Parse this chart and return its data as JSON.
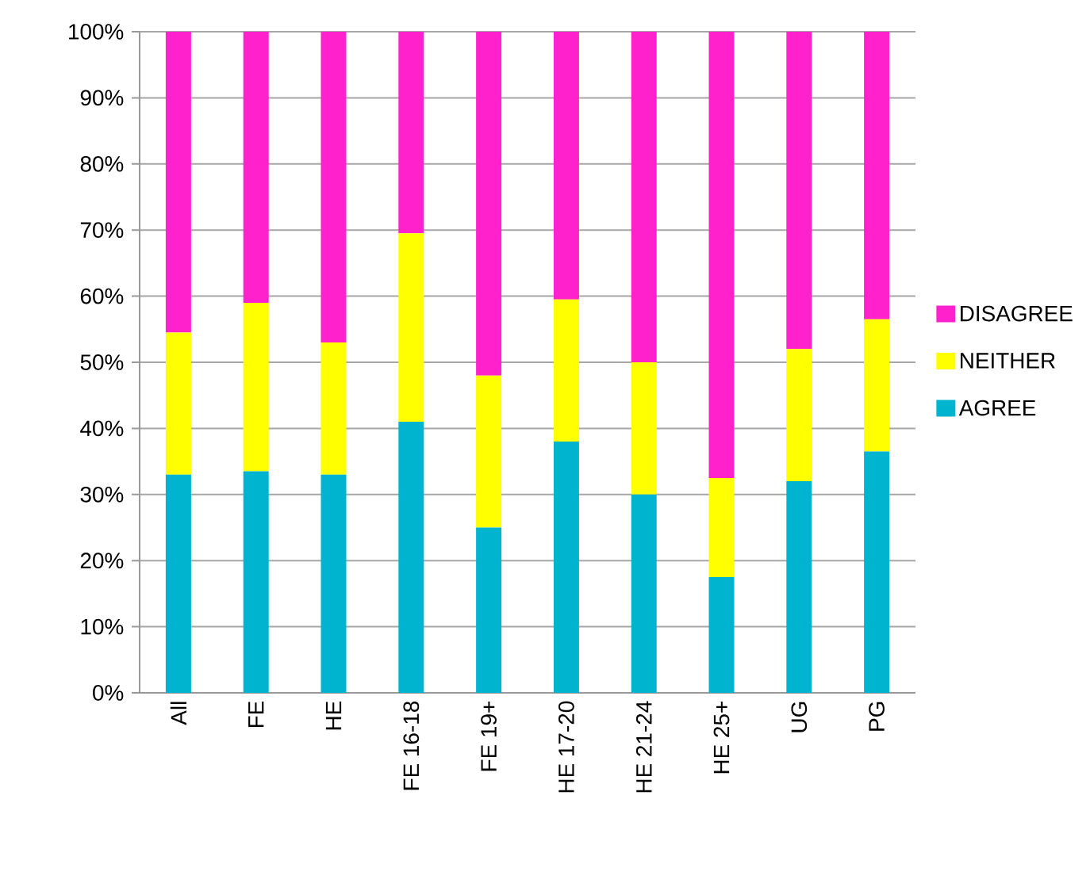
{
  "chart_data": {
    "type": "bar",
    "stacked": true,
    "categories": [
      "All",
      "FE",
      "HE",
      "FE 16-18",
      "FE 19+",
      "HE 17-20",
      "HE 21-24",
      "HE 25+",
      "UG",
      "PG"
    ],
    "series": [
      {
        "name": "AGREE",
        "color": "#00b4d0",
        "values": [
          33,
          33.5,
          33,
          41,
          25,
          38,
          30,
          17.5,
          32,
          36.5
        ]
      },
      {
        "name": "NEITHER",
        "color": "#ffff00",
        "values": [
          21.5,
          25.5,
          20,
          28.5,
          23,
          21.5,
          20,
          15,
          20,
          20
        ]
      },
      {
        "name": "DISAGREE",
        "color": "#ff22cc",
        "values": [
          45.5,
          41,
          47,
          30.5,
          52,
          40.5,
          50,
          67.5,
          48,
          43.5
        ]
      }
    ],
    "ylim": [
      0,
      100
    ],
    "yticks": [
      {
        "value": 0,
        "label": "0%"
      },
      {
        "value": 10,
        "label": "10%"
      },
      {
        "value": 20,
        "label": "20%"
      },
      {
        "value": 30,
        "label": "30%"
      },
      {
        "value": 40,
        "label": "40%"
      },
      {
        "value": 50,
        "label": "50%"
      },
      {
        "value": 60,
        "label": "60%"
      },
      {
        "value": 70,
        "label": "70%"
      },
      {
        "value": 80,
        "label": "80%"
      },
      {
        "value": 90,
        "label": "90%"
      },
      {
        "value": 100,
        "label": "100%"
      }
    ],
    "grid": "y",
    "legend": "right"
  }
}
